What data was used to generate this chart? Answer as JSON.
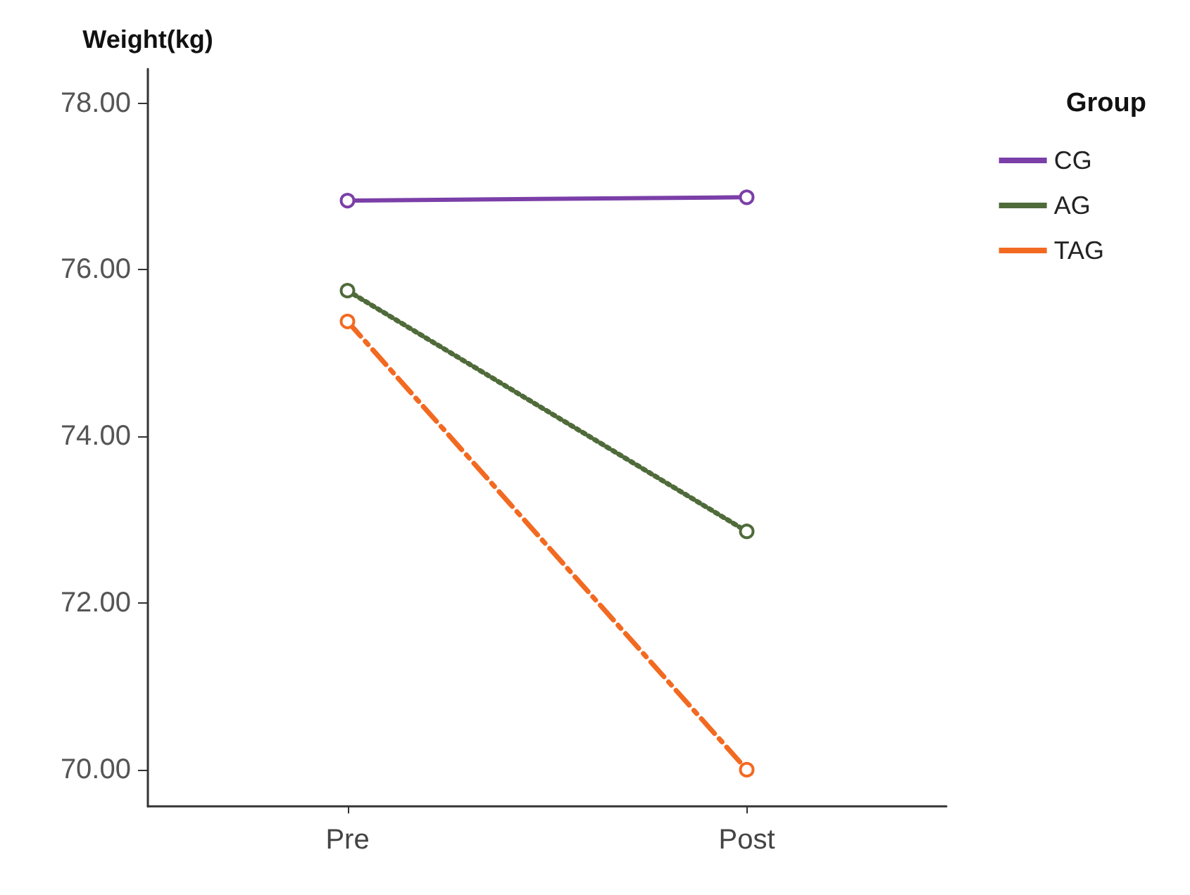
{
  "chart_data": {
    "type": "line",
    "ylabel": "Weight(kg)",
    "legend_title": "Group",
    "legend": "top right",
    "marker": "circle",
    "grid": false,
    "categories": [
      "Pre",
      "Post"
    ],
    "ylim": [
      69.56,
      78.41
    ],
    "yticks": [
      {
        "value": 70,
        "label": "70.00"
      },
      {
        "value": 72,
        "label": "72.00"
      },
      {
        "value": 74,
        "label": "74.00"
      },
      {
        "value": 76,
        "label": "76.00"
      },
      {
        "value": 78,
        "label": "78.00"
      }
    ],
    "series": [
      {
        "name": "CG",
        "color": "#7b3fa8",
        "line_style": "solid",
        "values": [
          76.83,
          76.87
        ]
      },
      {
        "name": "AG",
        "color": "#4f6b3a",
        "line_style": "dotted",
        "values": [
          75.75,
          72.86
        ]
      },
      {
        "name": "TAG",
        "color": "#f26a21",
        "line_style": "dashed",
        "values": [
          75.38,
          70.0
        ]
      }
    ]
  }
}
